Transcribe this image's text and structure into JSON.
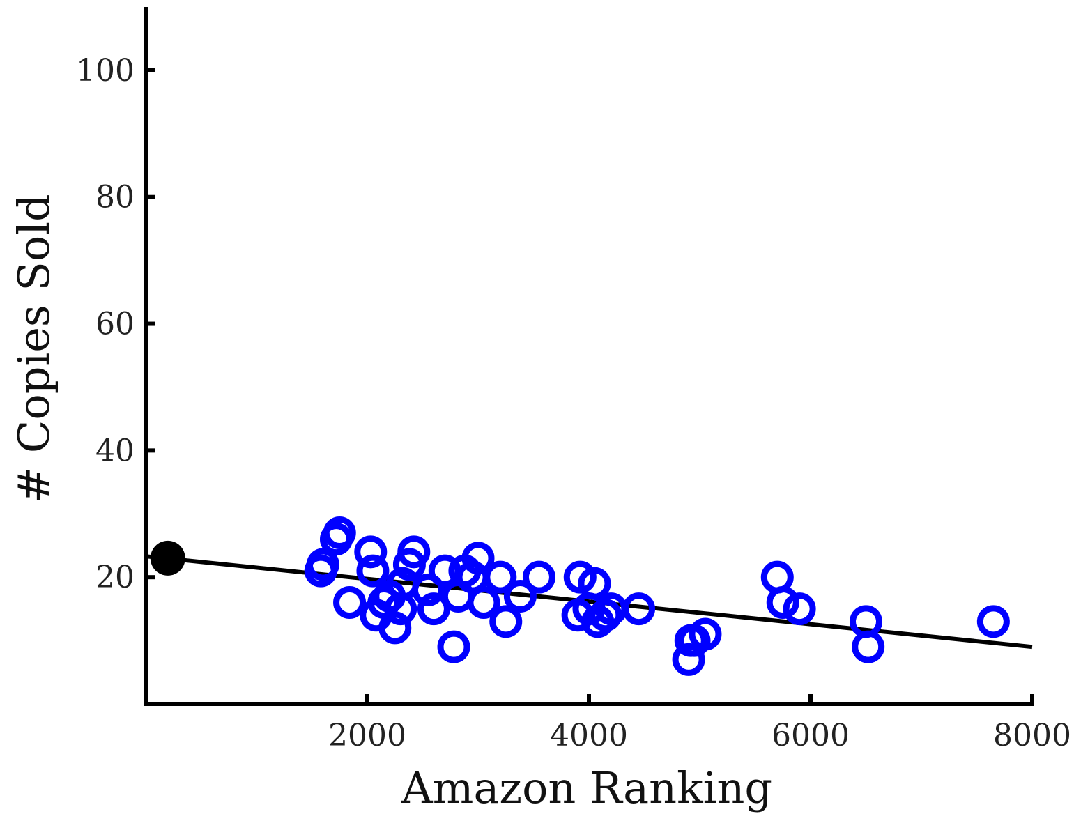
{
  "chart_data": {
    "type": "scatter",
    "xlabel": "Amazon Ranking",
    "ylabel": "# Copies Sold",
    "xlim": [
      0,
      8000
    ],
    "ylim": [
      0,
      110
    ],
    "xticks": [
      2000,
      4000,
      6000,
      8000
    ],
    "yticks": [
      20,
      40,
      60,
      80,
      100
    ],
    "grid": false,
    "colors": {
      "points": "#0000ff",
      "fit_line": "#000000",
      "highlight": "#000000",
      "axes": "#000000"
    },
    "series": [
      {
        "marker": "open-circle",
        "points": [
          {
            "x": 1580,
            "y": 21
          },
          {
            "x": 1600,
            "y": 22
          },
          {
            "x": 1720,
            "y": 26
          },
          {
            "x": 1750,
            "y": 27
          },
          {
            "x": 1840,
            "y": 16
          },
          {
            "x": 2030,
            "y": 24
          },
          {
            "x": 2050,
            "y": 21
          },
          {
            "x": 2080,
            "y": 14
          },
          {
            "x": 2150,
            "y": 16
          },
          {
            "x": 2200,
            "y": 17
          },
          {
            "x": 2250,
            "y": 12
          },
          {
            "x": 2300,
            "y": 15
          },
          {
            "x": 2320,
            "y": 19
          },
          {
            "x": 2380,
            "y": 22
          },
          {
            "x": 2420,
            "y": 24
          },
          {
            "x": 2550,
            "y": 18
          },
          {
            "x": 2600,
            "y": 15
          },
          {
            "x": 2700,
            "y": 21
          },
          {
            "x": 2780,
            "y": 9
          },
          {
            "x": 2820,
            "y": 17
          },
          {
            "x": 2880,
            "y": 21
          },
          {
            "x": 2950,
            "y": 20
          },
          {
            "x": 3000,
            "y": 23
          },
          {
            "x": 3050,
            "y": 16
          },
          {
            "x": 3200,
            "y": 20
          },
          {
            "x": 3250,
            "y": 13
          },
          {
            "x": 3380,
            "y": 17
          },
          {
            "x": 3550,
            "y": 20
          },
          {
            "x": 3900,
            "y": 14
          },
          {
            "x": 3920,
            "y": 20
          },
          {
            "x": 4000,
            "y": 15
          },
          {
            "x": 4050,
            "y": 19
          },
          {
            "x": 4080,
            "y": 13
          },
          {
            "x": 4150,
            "y": 14
          },
          {
            "x": 4200,
            "y": 15
          },
          {
            "x": 4450,
            "y": 15
          },
          {
            "x": 4900,
            "y": 7
          },
          {
            "x": 4920,
            "y": 10
          },
          {
            "x": 4950,
            "y": 10
          },
          {
            "x": 5050,
            "y": 11
          },
          {
            "x": 5700,
            "y": 20
          },
          {
            "x": 5750,
            "y": 16
          },
          {
            "x": 5900,
            "y": 15
          },
          {
            "x": 6500,
            "y": 13
          },
          {
            "x": 6520,
            "y": 9
          },
          {
            "x": 7650,
            "y": 13
          }
        ]
      },
      {
        "marker": "filled-circle",
        "points": [
          {
            "x": 200,
            "y": 23
          }
        ]
      }
    ],
    "fit_line": {
      "x": [
        0,
        8000
      ],
      "y": [
        23.3,
        9.0
      ]
    }
  }
}
